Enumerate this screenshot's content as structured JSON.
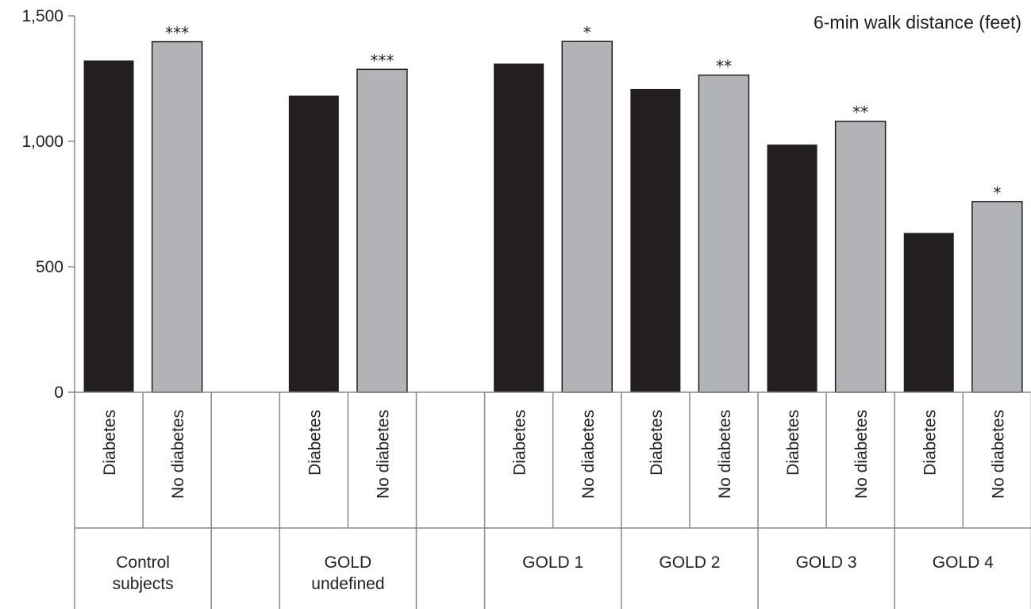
{
  "chart_data": {
    "type": "bar",
    "title": "6-min walk distance (feet)",
    "ylim": [
      0,
      1500
    ],
    "yticks": [
      "0",
      "500",
      "1,000",
      "1,500"
    ],
    "ytick_values": [
      0,
      500,
      1000,
      1500
    ],
    "grid": false,
    "legend": "none",
    "groups": [
      {
        "label": "Control\nsubjects",
        "bars": [
          {
            "category": "Diabetes",
            "value": 1322,
            "marker": ""
          },
          {
            "category": "No diabetes",
            "value": 1397,
            "marker": "***"
          }
        ]
      },
      {
        "label": "GOLD\nundefined",
        "bars": [
          {
            "category": "Diabetes",
            "value": 1182,
            "marker": ""
          },
          {
            "category": "No diabetes",
            "value": 1287,
            "marker": "***"
          }
        ]
      },
      {
        "label": "GOLD 1",
        "bars": [
          {
            "category": "Diabetes",
            "value": 1310,
            "marker": ""
          },
          {
            "category": "No diabetes",
            "value": 1398,
            "marker": "*"
          }
        ]
      },
      {
        "label": "GOLD 2",
        "bars": [
          {
            "category": "Diabetes",
            "value": 1209,
            "marker": ""
          },
          {
            "category": "No diabetes",
            "value": 1264,
            "marker": "**"
          }
        ]
      },
      {
        "label": "GOLD 3",
        "bars": [
          {
            "category": "Diabetes",
            "value": 987,
            "marker": ""
          },
          {
            "category": "No diabetes",
            "value": 1080,
            "marker": "**"
          }
        ]
      },
      {
        "label": "GOLD 4",
        "bars": [
          {
            "category": "Diabetes",
            "value": 635,
            "marker": ""
          },
          {
            "category": "No diabetes",
            "value": 760,
            "marker": "*"
          }
        ]
      }
    ],
    "colors": {
      "Diabetes": "#231f20",
      "No diabetes": "#b1b3b6"
    }
  }
}
